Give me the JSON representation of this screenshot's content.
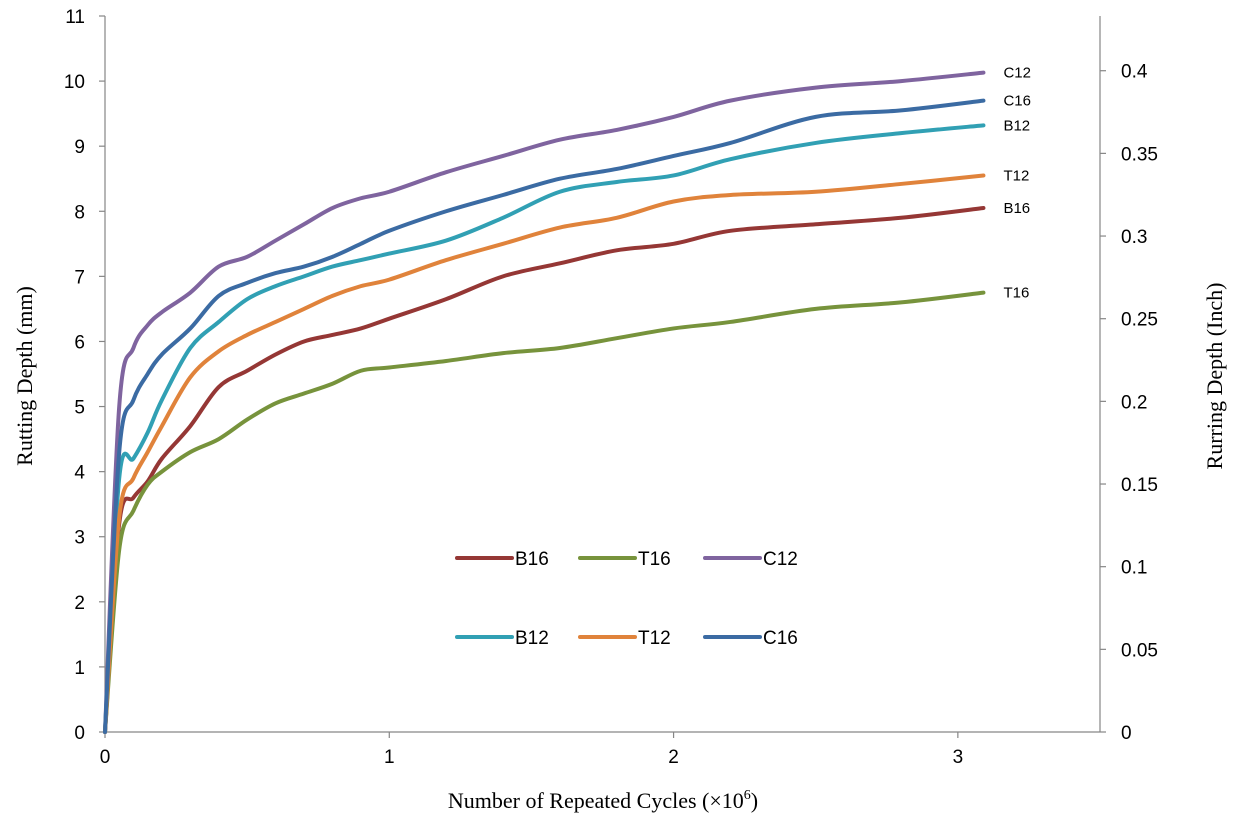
{
  "chart_data": {
    "type": "line",
    "title": "",
    "xlabel": "Number of Repeated Cycles (×10",
    "xlabel_sup": "6",
    "xlabel_close": ")",
    "ylabel": "Rutting Depth (mm)",
    "y2label": "Rurring Depth (Inch)",
    "xlim": [
      0,
      3.5
    ],
    "ylim": [
      0,
      11
    ],
    "y2lim": [
      0,
      0.4331
    ],
    "xticks": [
      "0",
      "1",
      "2",
      "3"
    ],
    "xtick_values": [
      0,
      1,
      2,
      3
    ],
    "yticks": [
      "0",
      "1",
      "2",
      "3",
      "4",
      "5",
      "6",
      "7",
      "8",
      "9",
      "10",
      "11"
    ],
    "yticks_right": [
      "0",
      "0.05",
      "0.1",
      "0.15",
      "0.2",
      "0.25",
      "0.3",
      "0.35",
      "0.4"
    ],
    "grid": false,
    "legend_position": "center",
    "x": [
      0,
      0.05,
      0.1,
      0.15,
      0.2,
      0.3,
      0.4,
      0.5,
      0.6,
      0.7,
      0.8,
      0.9,
      1.0,
      1.2,
      1.4,
      1.6,
      1.8,
      2.0,
      2.2,
      2.5,
      2.8,
      3.09
    ],
    "series": [
      {
        "name": "B16",
        "color": "#953735",
        "end_label": "B16",
        "values": [
          0,
          3.2,
          3.6,
          3.85,
          4.2,
          4.7,
          5.3,
          5.55,
          5.8,
          6.0,
          6.1,
          6.2,
          6.35,
          6.65,
          7.0,
          7.2,
          7.4,
          7.5,
          7.7,
          7.8,
          7.9,
          8.05
        ]
      },
      {
        "name": "T16",
        "color": "#77933C",
        "end_label": "T16",
        "values": [
          0,
          2.8,
          3.4,
          3.8,
          4.0,
          4.3,
          4.5,
          4.8,
          5.05,
          5.2,
          5.35,
          5.55,
          5.6,
          5.7,
          5.82,
          5.9,
          6.05,
          6.2,
          6.3,
          6.5,
          6.6,
          6.75
        ]
      },
      {
        "name": "C12",
        "color": "#7F649F",
        "end_label": "C12",
        "values": [
          0,
          5.0,
          5.9,
          6.25,
          6.45,
          6.75,
          7.15,
          7.3,
          7.55,
          7.8,
          8.05,
          8.2,
          8.3,
          8.6,
          8.85,
          9.1,
          9.25,
          9.45,
          9.7,
          9.9,
          10.0,
          10.13
        ]
      },
      {
        "name": "B12",
        "color": "#31A0B4",
        "end_label": "B12",
        "values": [
          0,
          3.9,
          4.2,
          4.6,
          5.1,
          5.9,
          6.3,
          6.65,
          6.85,
          7.0,
          7.15,
          7.25,
          7.35,
          7.55,
          7.9,
          8.3,
          8.45,
          8.55,
          8.8,
          9.05,
          9.2,
          9.32
        ]
      },
      {
        "name": "T12",
        "color": "#E0833B",
        "end_label": "T12",
        "values": [
          0,
          3.3,
          3.9,
          4.3,
          4.7,
          5.45,
          5.85,
          6.1,
          6.3,
          6.5,
          6.7,
          6.85,
          6.95,
          7.25,
          7.5,
          7.75,
          7.9,
          8.15,
          8.25,
          8.3,
          8.42,
          8.55
        ]
      },
      {
        "name": "C16",
        "color": "#3B6BA3",
        "end_label": "C16",
        "values": [
          0,
          4.3,
          5.1,
          5.5,
          5.8,
          6.2,
          6.7,
          6.9,
          7.05,
          7.15,
          7.3,
          7.5,
          7.7,
          8.0,
          8.25,
          8.5,
          8.65,
          8.85,
          9.05,
          9.45,
          9.55,
          9.7
        ]
      }
    ],
    "legend_rows": [
      [
        "B16",
        "T16",
        "C12"
      ],
      [
        "B12",
        "T12",
        "C16"
      ]
    ]
  }
}
